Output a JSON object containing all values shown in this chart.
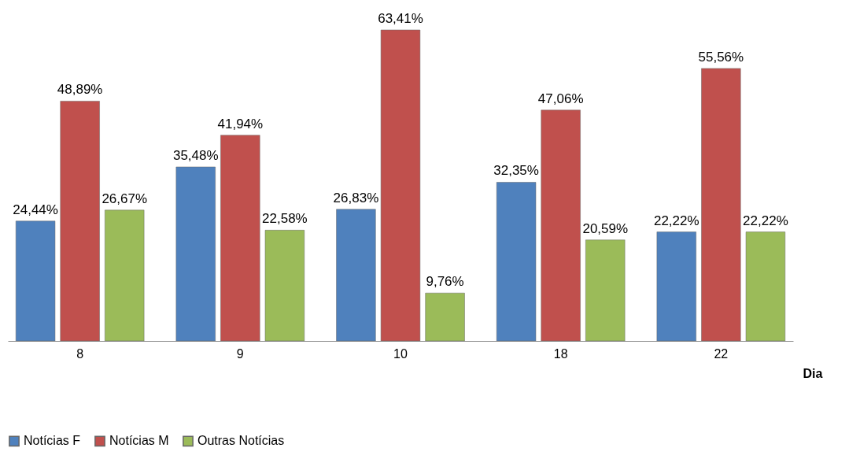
{
  "chart_data": {
    "type": "bar",
    "xlabel": "Dia",
    "categories": [
      "8",
      "9",
      "10",
      "18",
      "22"
    ],
    "series": [
      {
        "name": "Notícias F",
        "color": "#4f81bd",
        "values": [
          24.44,
          35.48,
          26.83,
          32.35,
          22.22
        ],
        "value_labels": [
          "24,44%",
          "35,48%",
          "26,83%",
          "32,35%",
          "22,22%"
        ]
      },
      {
        "name": "Notícias M",
        "color": "#c0504d",
        "values": [
          48.89,
          41.94,
          63.41,
          47.06,
          55.56
        ],
        "value_labels": [
          "48,89%",
          "41,94%",
          "63,41%",
          "47,06%",
          "55,56%"
        ]
      },
      {
        "name": "Outras Notícias",
        "color": "#9bbb59",
        "values": [
          26.67,
          22.58,
          9.76,
          20.59,
          22.22
        ],
        "value_labels": [
          "26,67%",
          "22,58%",
          "9,76%",
          "20,59%",
          "22,22%"
        ]
      }
    ],
    "legend": "bottom",
    "grid": false
  }
}
